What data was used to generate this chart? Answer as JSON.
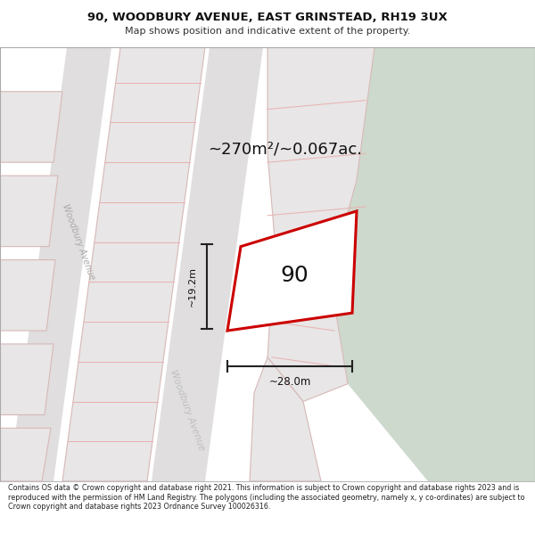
{
  "title_line1": "90, WOODBURY AVENUE, EAST GRINSTEAD, RH19 3UX",
  "title_line2": "Map shows position and indicative extent of the property.",
  "area_label": "~270m²/~0.067ac.",
  "property_number": "90",
  "dim_width": "~28.0m",
  "dim_height": "~19.2m",
  "street_label1": "Woodbury Avenue",
  "street_label2": "Woodbury Avenue",
  "footer_text": "Contains OS data © Crown copyright and database right 2021. This information is subject to Crown copyright and database rights 2023 and is reproduced with the permission of HM Land Registry. The polygons (including the associated geometry, namely x, y co-ordinates) are subject to Crown copyright and database rights 2023 Ordnance Survey 100026316.",
  "map_bg": "#eeecec",
  "green_color": "#cdd9cd",
  "road_color": "#e0dede",
  "block_fc": "#e8e6e6",
  "block_ec": "#d8b8b8",
  "pink": "#e8b0b0",
  "plot_ec": "#cc0000",
  "plot_fc": "#ffffff",
  "dim_color": "#222222",
  "street_color1": "#aaaaaa",
  "street_color2": "#c0c0c0",
  "title_color": "#111111",
  "subtitle_color": "#333333",
  "footer_color": "#222222"
}
